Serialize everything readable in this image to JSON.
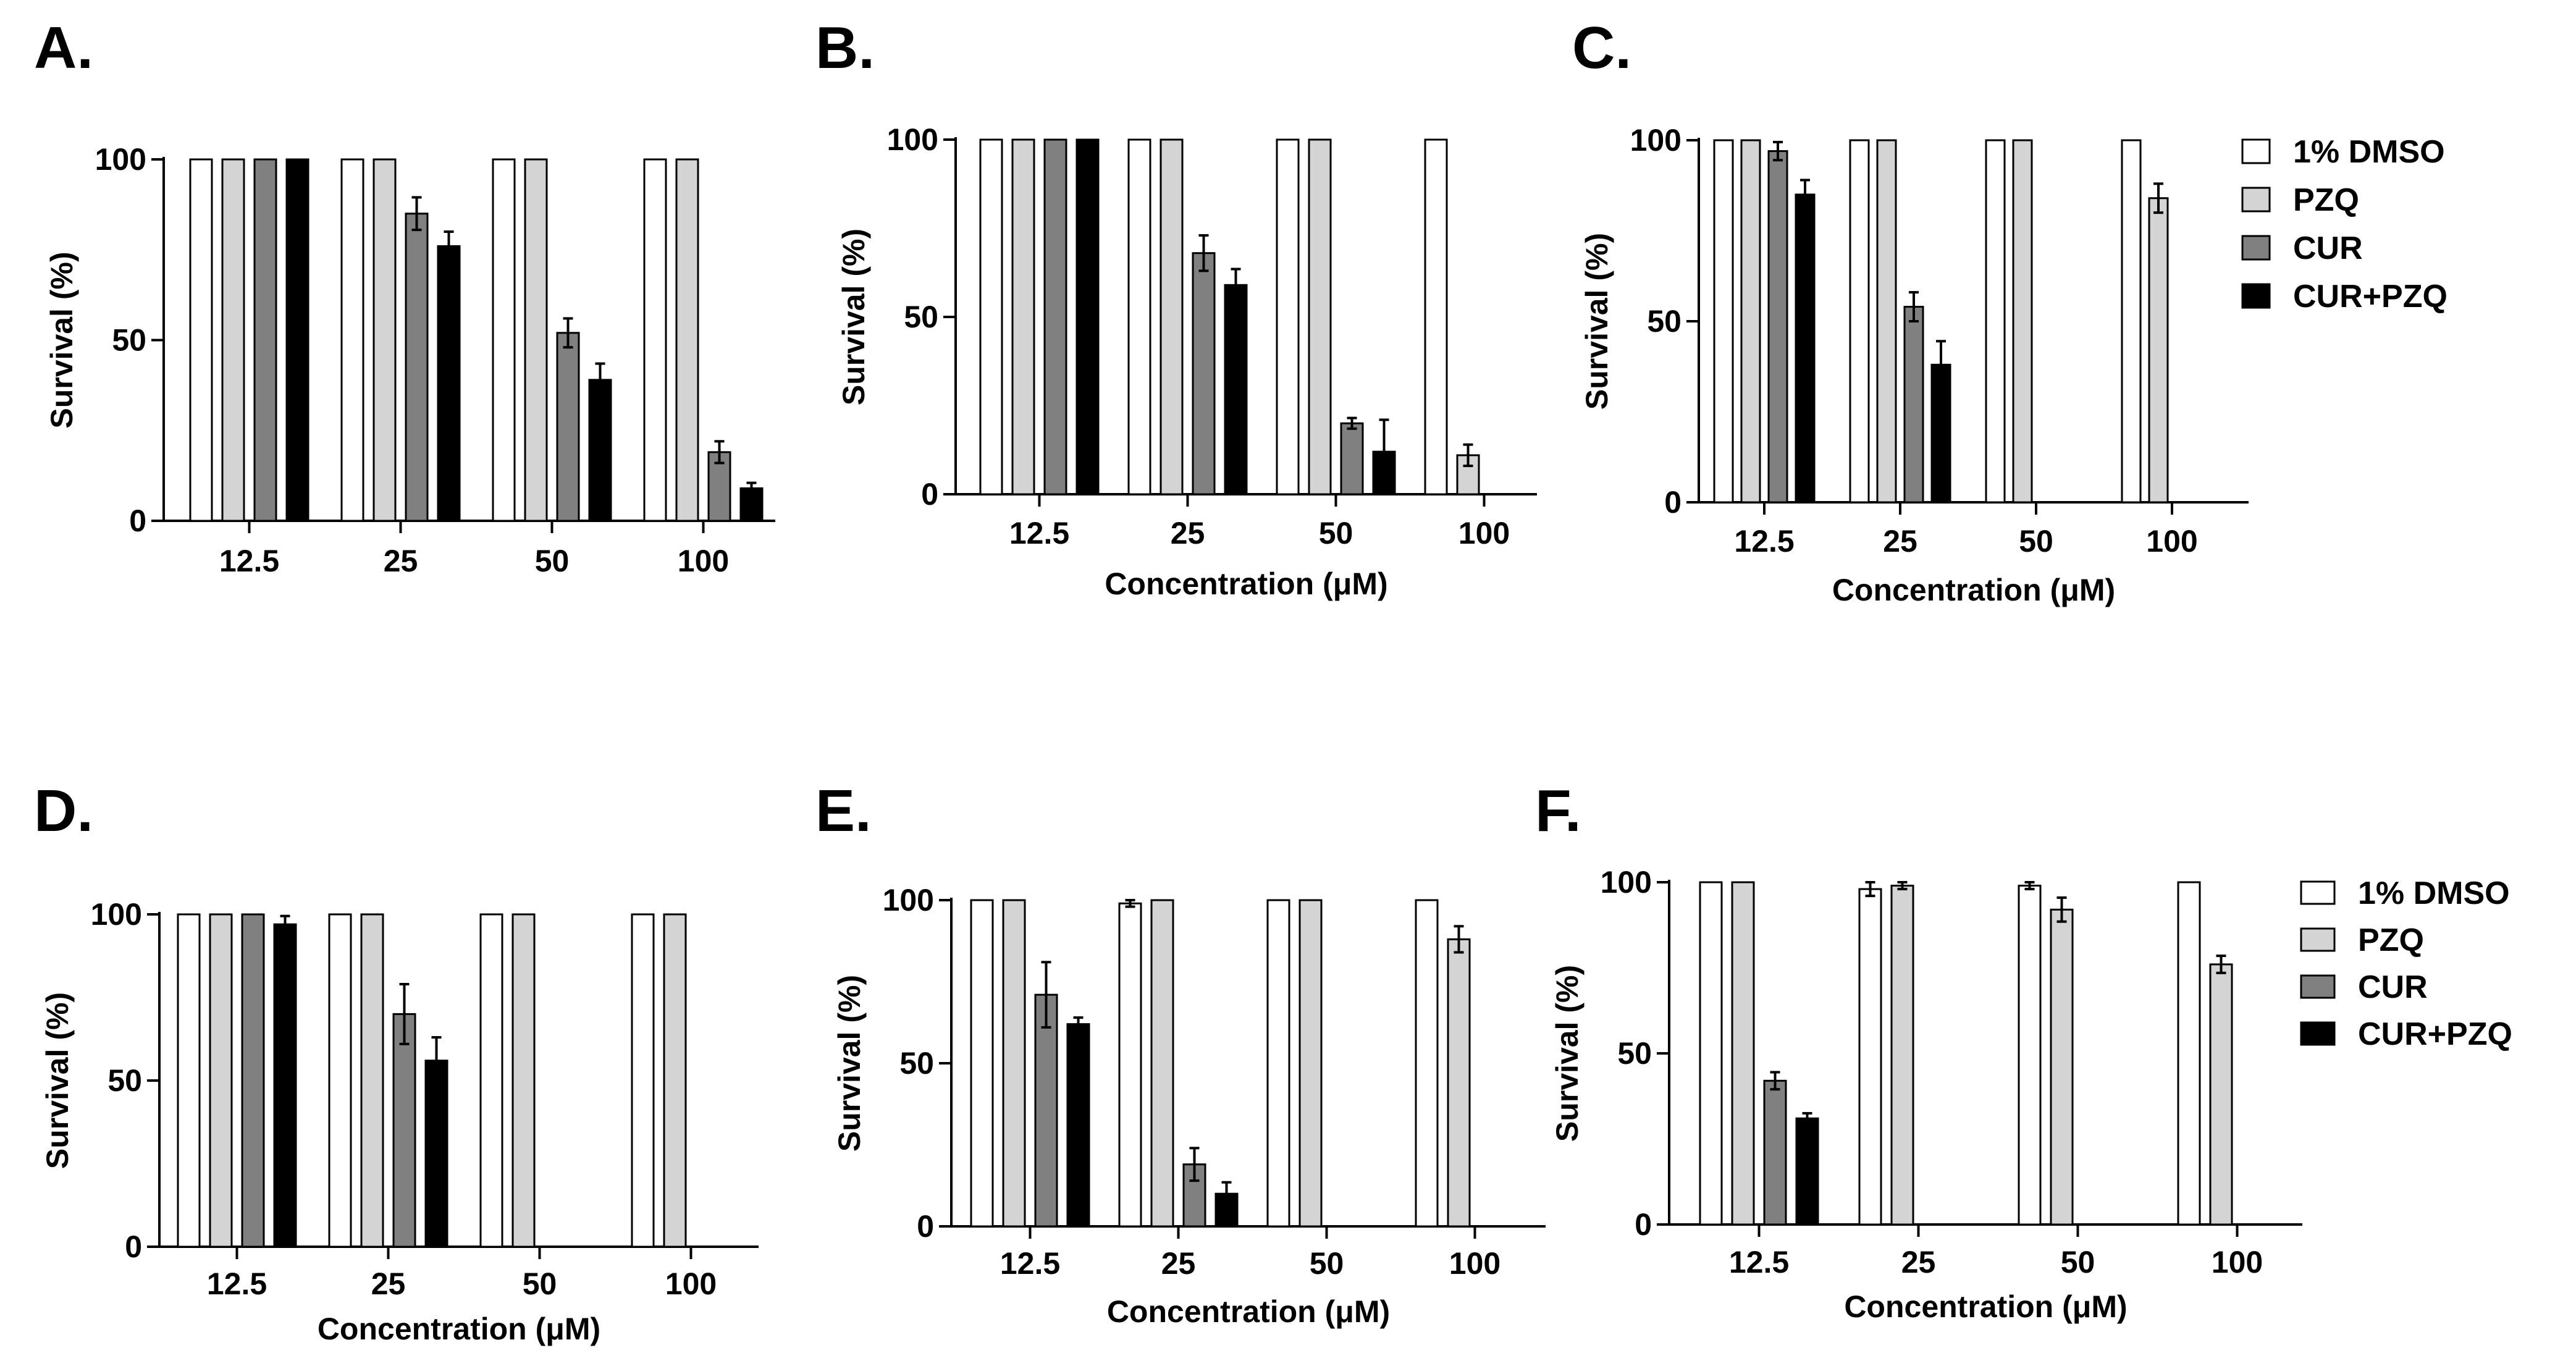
{
  "legend_series": [
    "1% DMSO",
    "PZQ",
    "CUR",
    "CUR+PZQ"
  ],
  "chart_data": [
    {
      "panel": "A.",
      "type": "bar",
      "categories": [
        "12.5",
        "25",
        "50",
        "100"
      ],
      "xlabel": "",
      "ylabel": "Survival  (%)",
      "ylim": [
        0,
        100
      ],
      "yticks": [
        0,
        50,
        100
      ],
      "grid": false,
      "series": [
        {
          "name": "1% DMSO",
          "color": "#ffffff",
          "values": [
            100,
            100,
            100,
            100
          ],
          "errors": [
            0,
            0,
            0,
            0
          ]
        },
        {
          "name": "PZQ",
          "color": "#d4d4d4",
          "values": [
            100,
            100,
            100,
            100
          ],
          "errors": [
            0,
            0,
            0,
            0
          ]
        },
        {
          "name": "CUR",
          "color": "#808080",
          "values": [
            100,
            85,
            52,
            19
          ],
          "errors": [
            0,
            4.5,
            4,
            3
          ]
        },
        {
          "name": "CUR+PZQ",
          "color": "#000000",
          "values": [
            100,
            76,
            39,
            9
          ],
          "errors": [
            0,
            4,
            4.5,
            1.5
          ]
        }
      ]
    },
    {
      "panel": "B.",
      "type": "bar",
      "categories": [
        "12.5",
        "25",
        "50",
        "100"
      ],
      "xlabel": "Concentration (μM)",
      "ylabel": "Survival  (%)",
      "ylim": [
        0,
        100
      ],
      "yticks": [
        0,
        50,
        100
      ],
      "grid": false,
      "series": [
        {
          "name": "1% DMSO",
          "color": "#ffffff",
          "values": [
            100,
            100,
            100,
            100
          ],
          "errors": [
            0,
            0,
            0,
            0
          ]
        },
        {
          "name": "PZQ",
          "color": "#d4d4d4",
          "values": [
            100,
            100,
            100,
            11
          ],
          "errors": [
            0,
            0,
            0,
            3
          ]
        },
        {
          "name": "CUR",
          "color": "#808080",
          "values": [
            100,
            68,
            20,
            0
          ],
          "errors": [
            0,
            5,
            1.5,
            0
          ]
        },
        {
          "name": "CUR+PZQ",
          "color": "#000000",
          "values": [
            100,
            59,
            12,
            0
          ],
          "errors": [
            0,
            4.5,
            9,
            0
          ]
        }
      ]
    },
    {
      "panel": "C.",
      "type": "bar",
      "categories": [
        "12.5",
        "25",
        "50",
        "100"
      ],
      "xlabel": "Concentration (μM)",
      "ylabel": "Survival  (%)",
      "ylim": [
        0,
        100
      ],
      "yticks": [
        0,
        50,
        100
      ],
      "grid": false,
      "series": [
        {
          "name": "1% DMSO",
          "color": "#ffffff",
          "values": [
            100,
            100,
            100,
            100
          ],
          "errors": [
            0,
            0,
            0,
            0
          ]
        },
        {
          "name": "PZQ",
          "color": "#d4d4d4",
          "values": [
            100,
            100,
            100,
            84
          ],
          "errors": [
            0,
            0,
            0,
            4
          ]
        },
        {
          "name": "CUR",
          "color": "#808080",
          "values": [
            97,
            54,
            0,
            0
          ],
          "errors": [
            2.5,
            4,
            0,
            0
          ]
        },
        {
          "name": "CUR+PZQ",
          "color": "#000000",
          "values": [
            85,
            38,
            0,
            0
          ],
          "errors": [
            4,
            6.5,
            0,
            0
          ]
        }
      ]
    },
    {
      "panel": "D.",
      "type": "bar",
      "categories": [
        "12.5",
        "25",
        "50",
        "100"
      ],
      "xlabel": "Concentration (μM)",
      "ylabel": "Survival  (%)",
      "ylim": [
        0,
        100
      ],
      "yticks": [
        0,
        50,
        100
      ],
      "grid": false,
      "series": [
        {
          "name": "1% DMSO",
          "color": "#ffffff",
          "values": [
            100,
            100,
            100,
            100
          ],
          "errors": [
            0,
            0,
            0,
            0
          ]
        },
        {
          "name": "PZQ",
          "color": "#d4d4d4",
          "values": [
            100,
            100,
            100,
            100
          ],
          "errors": [
            0,
            0,
            0,
            0
          ]
        },
        {
          "name": "CUR",
          "color": "#808080",
          "values": [
            100,
            70,
            0,
            0
          ],
          "errors": [
            0,
            9,
            0,
            0
          ]
        },
        {
          "name": "CUR+PZQ",
          "color": "#000000",
          "values": [
            97,
            56,
            0,
            0
          ],
          "errors": [
            2.5,
            7,
            0,
            0
          ]
        }
      ]
    },
    {
      "panel": "E.",
      "type": "bar",
      "categories": [
        "12.5",
        "25",
        "50",
        "100"
      ],
      "xlabel": "Concentration (μM)",
      "ylabel": "Survival  (%)",
      "ylim": [
        0,
        100
      ],
      "yticks": [
        0,
        50,
        100
      ],
      "grid": false,
      "series": [
        {
          "name": "1% DMSO",
          "color": "#ffffff",
          "values": [
            100,
            99,
            100,
            100
          ],
          "errors": [
            0,
            1,
            0,
            0
          ]
        },
        {
          "name": "PZQ",
          "color": "#d4d4d4",
          "values": [
            100,
            100,
            100,
            88
          ],
          "errors": [
            0,
            0,
            0,
            4
          ]
        },
        {
          "name": "CUR",
          "color": "#808080",
          "values": [
            71,
            19,
            0,
            0
          ],
          "errors": [
            10,
            5,
            0,
            0
          ]
        },
        {
          "name": "CUR+PZQ",
          "color": "#000000",
          "values": [
            62,
            10,
            0,
            0
          ],
          "errors": [
            2,
            3.5,
            0,
            0
          ]
        }
      ]
    },
    {
      "panel": "F.",
      "type": "bar",
      "categories": [
        "12.5",
        "25",
        "50",
        "100"
      ],
      "xlabel": "Concentration (μM)",
      "ylabel": "Survival  (%)",
      "ylim": [
        0,
        100
      ],
      "yticks": [
        0,
        50,
        100
      ],
      "grid": false,
      "series": [
        {
          "name": "1% DMSO",
          "color": "#ffffff",
          "values": [
            100,
            98,
            99,
            100
          ],
          "errors": [
            0,
            2,
            1,
            0
          ]
        },
        {
          "name": "PZQ",
          "color": "#d4d4d4",
          "values": [
            100,
            99,
            92,
            76
          ],
          "errors": [
            0,
            1,
            3.5,
            2.5
          ]
        },
        {
          "name": "CUR",
          "color": "#808080",
          "values": [
            42,
            0,
            0,
            0
          ],
          "errors": [
            2.5,
            0,
            0,
            0
          ]
        },
        {
          "name": "CUR+PZQ",
          "color": "#000000",
          "values": [
            31,
            0,
            0,
            0
          ],
          "errors": [
            1.5,
            0,
            0,
            0
          ]
        }
      ]
    }
  ]
}
